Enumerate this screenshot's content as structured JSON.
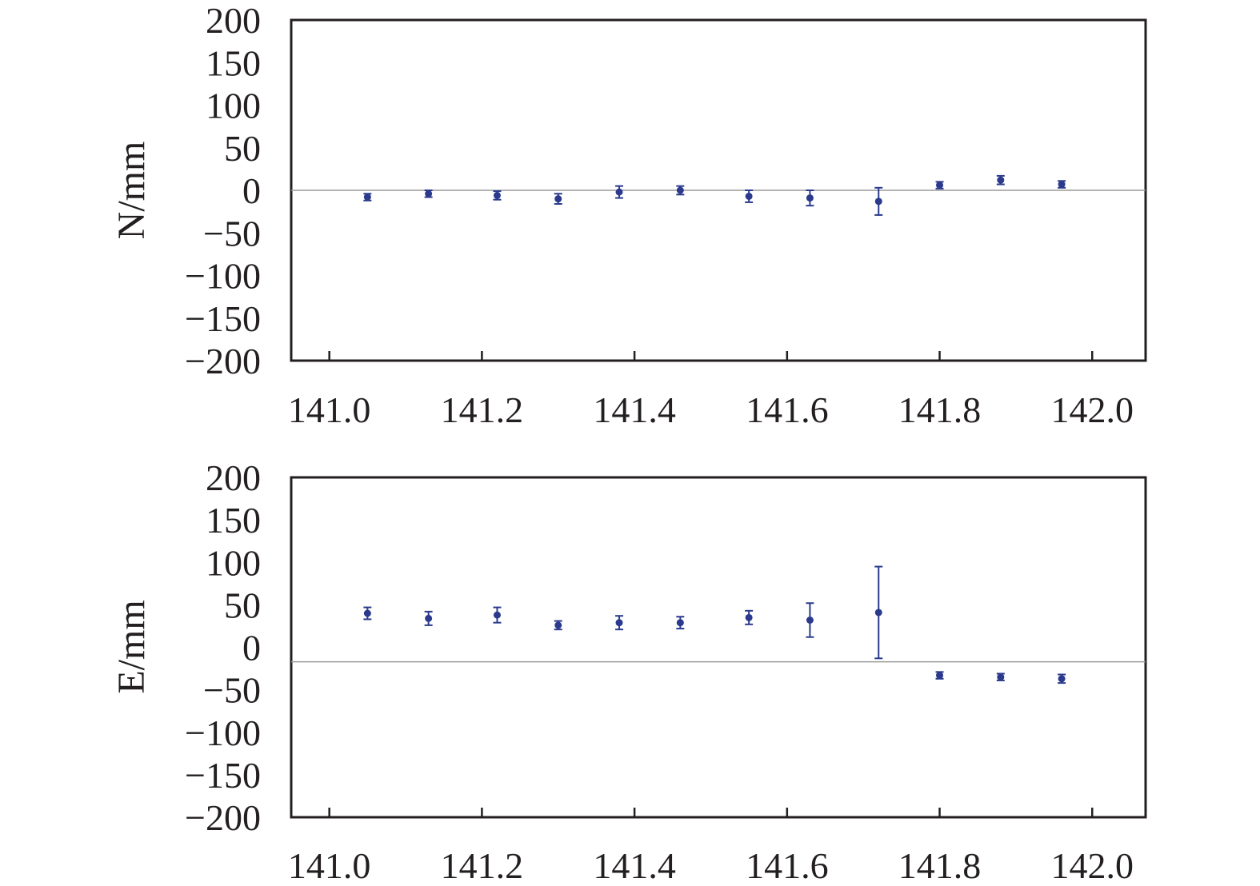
{
  "chart_data": [
    {
      "type": "scatter",
      "ylabel": "N/mm",
      "xlabel": "",
      "xlim": [
        140.95,
        142.07
      ],
      "ylim": [
        -200,
        200
      ],
      "xticks": [
        "141.0",
        "141.2",
        "141.4",
        "141.6",
        "141.8",
        "142.0"
      ],
      "yticks": [
        "200",
        "150",
        "100",
        "50",
        "0",
        "−50",
        "−100",
        "−150",
        "−200"
      ],
      "reference_line_y": 0,
      "grid": false,
      "color": "#2b3a8c",
      "points": [
        {
          "x": 141.05,
          "y": -8,
          "err": 4
        },
        {
          "x": 141.13,
          "y": -4,
          "err": 4
        },
        {
          "x": 141.22,
          "y": -6,
          "err": 5
        },
        {
          "x": 141.3,
          "y": -10,
          "err": 6
        },
        {
          "x": 141.38,
          "y": -2,
          "err": 7
        },
        {
          "x": 141.46,
          "y": 0,
          "err": 5
        },
        {
          "x": 141.55,
          "y": -7,
          "err": 7
        },
        {
          "x": 141.63,
          "y": -9,
          "err": 9
        },
        {
          "x": 141.72,
          "y": -13,
          "err": 16
        },
        {
          "x": 141.8,
          "y": 6,
          "err": 4
        },
        {
          "x": 141.88,
          "y": 12,
          "err": 5
        },
        {
          "x": 141.96,
          "y": 7,
          "err": 4
        }
      ]
    },
    {
      "type": "scatter",
      "ylabel": "E/mm",
      "xlabel": "",
      "xlim": [
        140.95,
        142.07
      ],
      "ylim": [
        -200,
        200
      ],
      "xticks": [
        "141.0",
        "141.2",
        "141.4",
        "141.6",
        "141.8",
        "142.0"
      ],
      "yticks": [
        "200",
        "150",
        "100",
        "50",
        "0",
        "−50",
        "−100",
        "−150",
        "−200"
      ],
      "reference_line_y": -17,
      "grid": false,
      "color": "#2b3a8c",
      "points": [
        {
          "x": 141.05,
          "y": 40,
          "err": 7
        },
        {
          "x": 141.13,
          "y": 34,
          "err": 8
        },
        {
          "x": 141.22,
          "y": 38,
          "err": 9
        },
        {
          "x": 141.3,
          "y": 26,
          "err": 5
        },
        {
          "x": 141.38,
          "y": 29,
          "err": 8
        },
        {
          "x": 141.46,
          "y": 29,
          "err": 7
        },
        {
          "x": 141.55,
          "y": 35,
          "err": 8
        },
        {
          "x": 141.63,
          "y": 32,
          "err": 20
        },
        {
          "x": 141.72,
          "y": 41,
          "err": 54
        },
        {
          "x": 141.8,
          "y": -33,
          "err": 4
        },
        {
          "x": 141.88,
          "y": -35,
          "err": 4
        },
        {
          "x": 141.96,
          "y": -37,
          "err": 5
        }
      ]
    }
  ]
}
